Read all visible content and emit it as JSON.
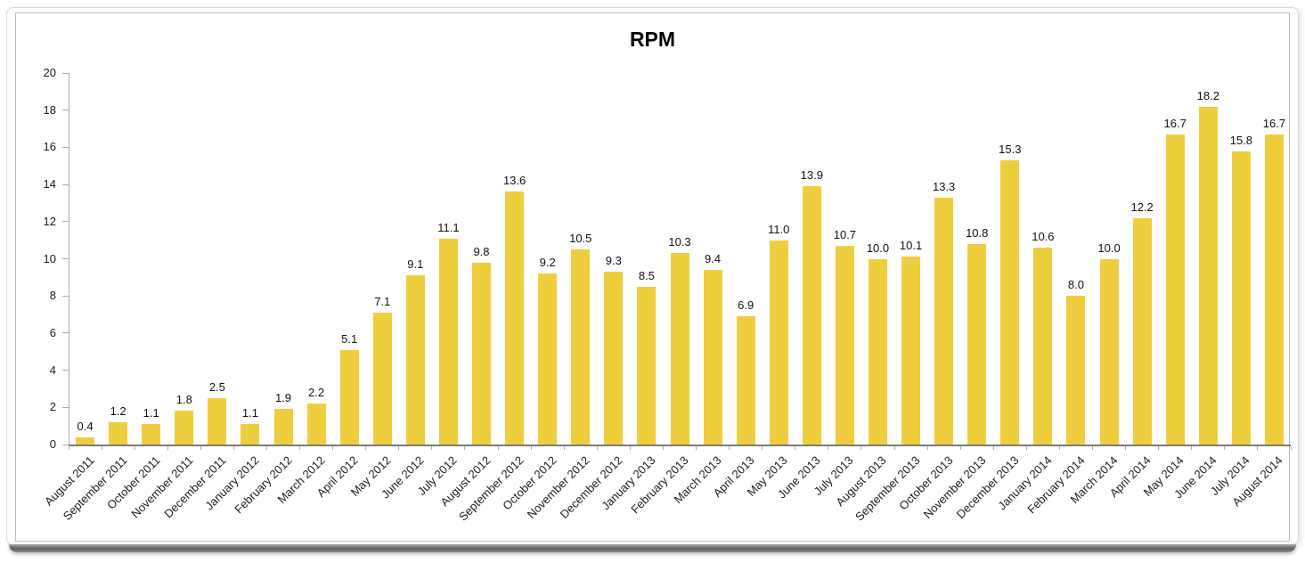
{
  "chart_data": {
    "type": "bar",
    "title": "RPM",
    "categories": [
      "August 2011",
      "September 2011",
      "October 2011",
      "November 2011",
      "December 2011",
      "January 2012",
      "February 2012",
      "March 2012",
      "April 2012",
      "May 2012",
      "June 2012",
      "July 2012",
      "August 2012",
      "September 2012",
      "October 2012",
      "November 2012",
      "December 2012",
      "January 2013",
      "February 2013",
      "March 2013",
      "April 2013",
      "May 2013",
      "June 2013",
      "July 2013",
      "August 2013",
      "September 2013",
      "October 2013",
      "November 2013",
      "December 2013",
      "January 2014",
      "February 2014",
      "March 2014",
      "April 2014",
      "May 2014",
      "June 2014",
      "July 2014",
      "August 2014"
    ],
    "values": [
      0.4,
      1.2,
      1.1,
      1.8,
      2.5,
      1.1,
      1.9,
      2.2,
      5.1,
      7.1,
      9.1,
      11.1,
      9.8,
      13.6,
      9.2,
      10.5,
      9.3,
      8.5,
      10.3,
      9.4,
      6.9,
      11.0,
      13.9,
      10.7,
      10.0,
      10.1,
      13.3,
      10.8,
      15.3,
      10.6,
      8.0,
      10.0,
      12.2,
      16.7,
      18.2,
      15.8,
      16.7
    ],
    "value_labels": [
      "0.4",
      "1.2",
      "1.1",
      "1.8",
      "2.5",
      "1.1",
      "1.9",
      "2.2",
      "5.1",
      "7.1",
      "9.1",
      "11.1",
      "9.8",
      "13.6",
      "9.2",
      "10.5",
      "9.3",
      "8.5",
      "10.3",
      "9.4",
      "6.9",
      "11.0",
      "13.9",
      "10.7",
      "10.0",
      "10.1",
      "13.3",
      "10.8",
      "15.3",
      "10.6",
      "8.0",
      "10.0",
      "12.2",
      "16.7",
      "18.2",
      "15.8",
      "16.7"
    ],
    "xlabel": "",
    "ylabel": "",
    "ylim": [
      0,
      20
    ],
    "ytick_step": 2,
    "ytick_labels": [
      "0",
      "2",
      "4",
      "6",
      "8",
      "10",
      "12",
      "14",
      "16",
      "18",
      "20"
    ],
    "bar_color": "#EFCE3E",
    "grid": false,
    "legend_position": "none"
  }
}
